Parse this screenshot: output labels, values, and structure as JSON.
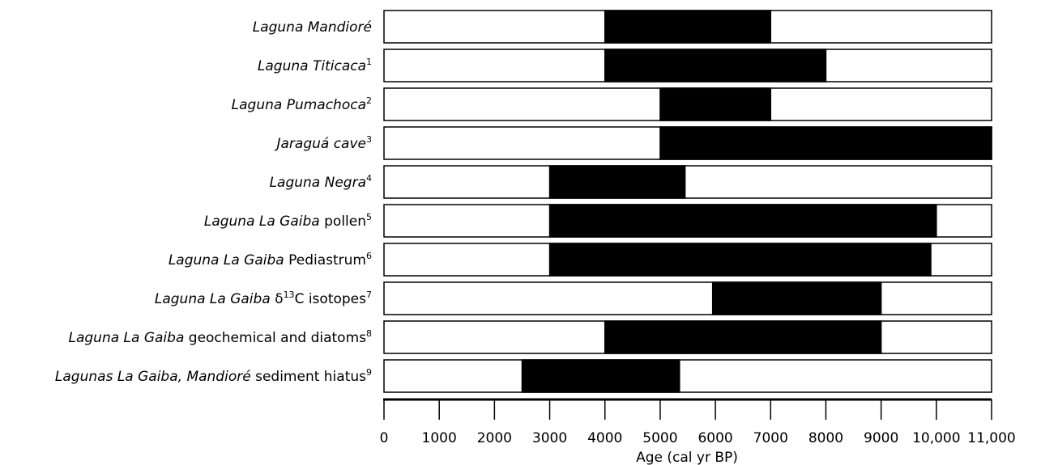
{
  "chart_data": {
    "type": "bar",
    "subtype": "horizontal-range (gantt)",
    "xlabel": "Age (cal yr BP)",
    "xlim": [
      0,
      11000
    ],
    "x_ticks": [
      {
        "value": 0,
        "label": "0"
      },
      {
        "value": 1000,
        "label": "1000"
      },
      {
        "value": 2000,
        "label": "2000"
      },
      {
        "value": 3000,
        "label": "3000"
      },
      {
        "value": 4000,
        "label": "4000"
      },
      {
        "value": 5000,
        "label": "5000"
      },
      {
        "value": 6000,
        "label": "6000"
      },
      {
        "value": 7000,
        "label": "7000"
      },
      {
        "value": 8000,
        "label": "8000"
      },
      {
        "value": 9000,
        "label": "9000"
      },
      {
        "value": 10000,
        "label": "10,000"
      },
      {
        "value": 11000,
        "label": "11,000"
      }
    ],
    "grid": false,
    "bar_color": "#000000",
    "background_bar_color": "#ffffff",
    "records": [
      {
        "parts": [
          {
            "text": "Laguna Mandioré",
            "italic": true
          }
        ],
        "sup": "",
        "start": 4000,
        "end": 7000
      },
      {
        "parts": [
          {
            "text": "Laguna Titicaca",
            "italic": true
          }
        ],
        "sup": "1",
        "start": 4000,
        "end": 8000
      },
      {
        "parts": [
          {
            "text": "Laguna Pumachoca",
            "italic": true
          }
        ],
        "sup": "2",
        "start": 5000,
        "end": 7000
      },
      {
        "parts": [
          {
            "text": "Jaraguá cave",
            "italic": true
          }
        ],
        "sup": "3",
        "start": 5000,
        "end": 11000
      },
      {
        "parts": [
          {
            "text": "Laguna Negra",
            "italic": true
          }
        ],
        "sup": "4",
        "start": 3000,
        "end": 5450
      },
      {
        "parts": [
          {
            "text": "Laguna La Gaiba",
            "italic": true
          },
          {
            "text": " pollen",
            "italic": false
          }
        ],
        "sup": "5",
        "start": 3000,
        "end": 10000
      },
      {
        "parts": [
          {
            "text": "Laguna La Gaiba",
            "italic": true
          },
          {
            "text": " Pediastrum",
            "italic": false
          }
        ],
        "sup": "6",
        "start": 3000,
        "end": 9900
      },
      {
        "parts": [
          {
            "text": "Laguna La Gaiba",
            "italic": true
          },
          {
            "text": " δ",
            "italic": false
          },
          {
            "text": "13",
            "italic": false,
            "sup": true
          },
          {
            "text": "C isotopes",
            "italic": false
          }
        ],
        "sup": "7",
        "start": 5950,
        "end": 9000
      },
      {
        "parts": [
          {
            "text": "Laguna La Gaiba",
            "italic": true
          },
          {
            "text": " geochemical and diatoms",
            "italic": false
          }
        ],
        "sup": "8",
        "start": 4000,
        "end": 9000
      },
      {
        "parts": [
          {
            "text": "Lagunas La Gaiba, Mandioré",
            "italic": true
          },
          {
            "text": " sediment hiatus",
            "italic": false
          }
        ],
        "sup": "9",
        "start": 2500,
        "end": 5350
      }
    ]
  }
}
